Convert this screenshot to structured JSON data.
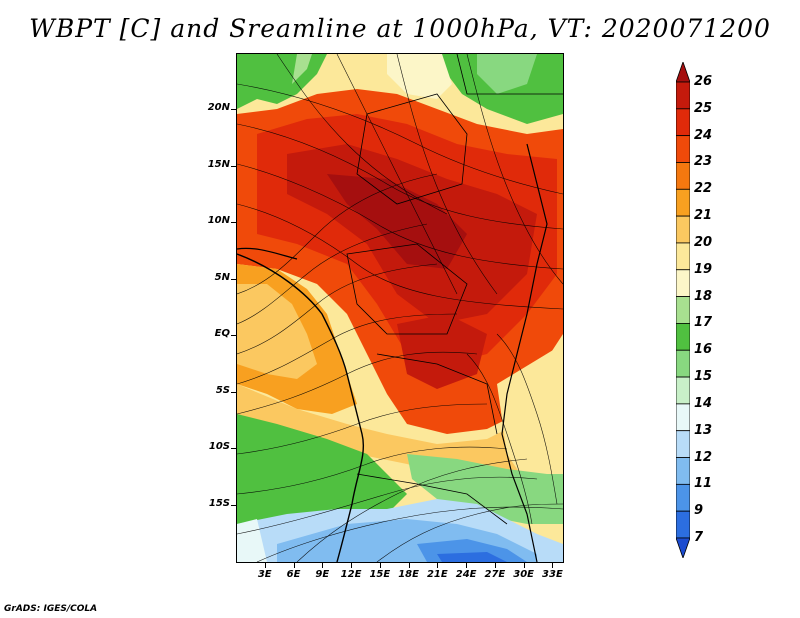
{
  "title": "WBPT [C] and Sreamline at 1000hPa, VT: 2020071200",
  "credit": "GrADS: IGES/COLA",
  "map": {
    "lat_labels": [
      "20N",
      "15N",
      "10N",
      "5N",
      "EQ",
      "5S",
      "10S",
      "15S"
    ],
    "lat_values": [
      20,
      15,
      10,
      5,
      0,
      -5,
      -10,
      -15
    ],
    "lon_labels": [
      "3E",
      "6E",
      "9E",
      "12E",
      "15E",
      "18E",
      "21E",
      "24E",
      "27E",
      "30E",
      "33E"
    ],
    "lon_values": [
      3,
      6,
      9,
      12,
      15,
      18,
      21,
      24,
      27,
      30,
      33
    ],
    "lon_range": [
      0,
      34
    ],
    "lat_range": [
      -20,
      25
    ]
  },
  "colorbar": {
    "labels": [
      "26",
      "25",
      "24",
      "23",
      "22",
      "21",
      "20",
      "19",
      "18",
      "17",
      "16",
      "15",
      "14",
      "13",
      "12",
      "11",
      "9",
      "7"
    ],
    "colors": [
      "#a50f0f",
      "#c41a0c",
      "#e02a0a",
      "#f04a0a",
      "#f5780f",
      "#f8a020",
      "#fbc860",
      "#fce89a",
      "#fcf6c8",
      "#a8e090",
      "#50c040",
      "#88d880",
      "#c8f0c8",
      "#e8f8f8",
      "#b8dcf8",
      "#80bcf0",
      "#4c94e8",
      "#2c6ee0",
      "#1c4cd0"
    ]
  }
}
